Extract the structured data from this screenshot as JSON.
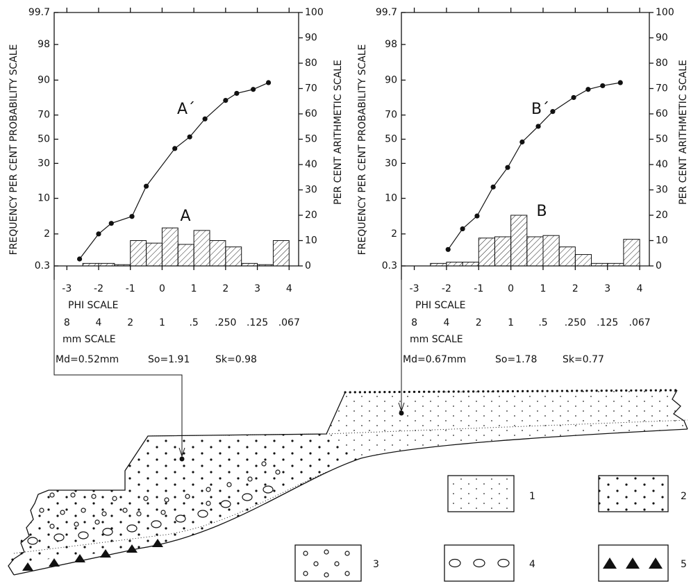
{
  "chart_data": [
    {
      "type": "grain-size",
      "y_label": "FREQUENCY PER CENT PROBABILITY SCALE",
      "y2_label": "PER CENT ARITHMETIC SCALE",
      "x_label": "PHI SCALE",
      "x2_label": "mm SCALE",
      "xlim": [
        -3.4,
        4.3
      ],
      "xticks": [
        -3,
        -2,
        -1,
        0,
        1,
        2,
        3,
        4
      ],
      "x2ticks": [
        {
          "value": -3,
          "label": "8"
        },
        {
          "value": -2,
          "label": "4"
        },
        {
          "value": -1,
          "label": "2"
        },
        {
          "value": 0,
          "label": "1"
        },
        {
          "value": 1,
          "label": ".5"
        },
        {
          "value": 2,
          "label": ".250"
        },
        {
          "value": 3,
          "label": ".125"
        },
        {
          "value": 4,
          "label": ".067"
        }
      ],
      "yscale": "probability",
      "ylim": [
        0.3,
        99.7
      ],
      "yticks": [
        0.3,
        2,
        10,
        30,
        50,
        70,
        90,
        98,
        99.7
      ],
      "y2lim": [
        0,
        100
      ],
      "y2ticks": [
        0,
        10,
        20,
        30,
        40,
        50,
        60,
        70,
        80,
        90,
        100
      ],
      "series": [
        {
          "name": "A",
          "type": "histogram",
          "axis": "y2",
          "bins": [
            -2.5,
            -2,
            -1.5,
            -1,
            -0.5,
            0,
            0.5,
            1,
            1.5,
            2,
            2.5,
            3,
            3.5,
            4
          ],
          "values": [
            1,
            1,
            0.5,
            10,
            9,
            15,
            8.5,
            14,
            10,
            7.5,
            1,
            0.5,
            10
          ]
        },
        {
          "name": "A´",
          "type": "cumulative",
          "x": [
            -2.6,
            -2.0,
            -1.6,
            -0.95,
            -0.5,
            0.4,
            0.87,
            1.35,
            2.0,
            2.35,
            2.87,
            3.35
          ],
          "values": [
            0.47,
            2,
            3.4,
            4.7,
            15.4,
            42,
            52,
            67,
            80,
            84,
            86,
            89
          ]
        }
      ],
      "statistics": [
        "Md=0.52mm",
        "So=1.91",
        "Sk=0.98"
      ]
    },
    {
      "type": "grain-size",
      "y_label": "FREQUENCY PER CENT PROBABILITY SCALE",
      "y2_label": "PER CENT ARITHMETIC SCALE",
      "x_label": "PHI SCALE",
      "x2_label": "mm SCALE",
      "xlim": [
        -3.4,
        4.3
      ],
      "xticks": [
        -3,
        -2,
        -1,
        0,
        1,
        2,
        3,
        4
      ],
      "x2ticks": [
        {
          "value": -3,
          "label": "8"
        },
        {
          "value": -2,
          "label": "4"
        },
        {
          "value": -1,
          "label": "2"
        },
        {
          "value": 0,
          "label": "1"
        },
        {
          "value": 1,
          "label": ".5"
        },
        {
          "value": 2,
          "label": ".250"
        },
        {
          "value": 3,
          "label": ".125"
        },
        {
          "value": 4,
          "label": ".067"
        }
      ],
      "yscale": "probability",
      "ylim": [
        0.3,
        99.7
      ],
      "yticks": [
        0.3,
        2,
        10,
        30,
        50,
        70,
        90,
        98,
        99.7
      ],
      "y2lim": [
        0,
        100
      ],
      "y2ticks": [
        0,
        10,
        20,
        30,
        40,
        50,
        60,
        70,
        80,
        90,
        100
      ],
      "series": [
        {
          "name": "B",
          "type": "histogram",
          "axis": "y2",
          "bins": [
            -2.5,
            -2,
            -1.5,
            -1,
            -0.5,
            0,
            0.5,
            1,
            1.5,
            2,
            2.5,
            3,
            3.5,
            4
          ],
          "values": [
            1,
            1.5,
            1.5,
            11,
            11.5,
            20,
            11.5,
            12,
            7.5,
            4.5,
            1,
            1,
            10.5
          ]
        },
        {
          "name": "B´",
          "type": "cumulative",
          "x": [
            -1.95,
            -1.5,
            -1.05,
            -0.55,
            -0.1,
            0.35,
            0.85,
            1.3,
            1.95,
            2.4,
            2.85,
            3.4
          ],
          "values": [
            0.84,
            2.6,
            4.8,
            15,
            27,
            47.6,
            61,
            72.6,
            81.7,
            86,
            87.7,
            89
          ]
        }
      ],
      "statistics": [
        "Md=0.67mm",
        "So=1.78",
        "Sk=0.77"
      ]
    }
  ],
  "diagram": {
    "legend": [
      "1",
      "2",
      "3",
      "4",
      "5"
    ]
  }
}
